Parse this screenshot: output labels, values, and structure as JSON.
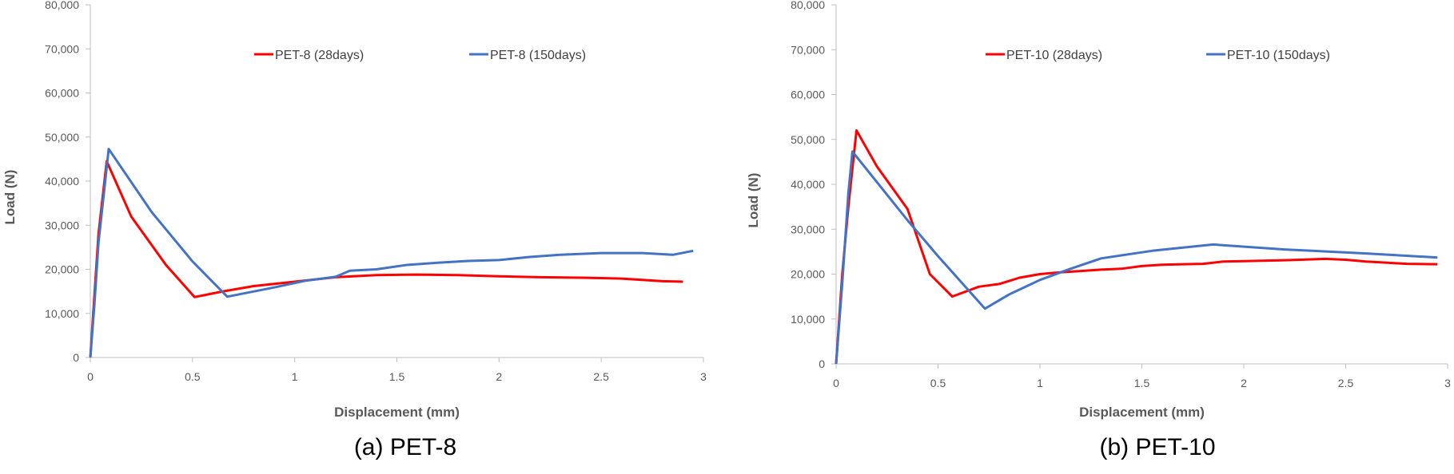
{
  "colors": {
    "red": "#ff0000",
    "blue": "#4472c4",
    "axis": "#bfbfbf",
    "text": "#595959"
  },
  "chart_data": [
    {
      "type": "line",
      "caption": "(a) PET-8",
      "xlabel": "Displacement (mm)",
      "ylabel": "Load (N)",
      "xlim": [
        0,
        3
      ],
      "ylim": [
        0,
        80000
      ],
      "x_ticks": [
        "0",
        "0.5",
        "1",
        "1.5",
        "2",
        "2.5",
        "3"
      ],
      "y_ticks": [
        "0",
        "10,000",
        "20,000",
        "30,000",
        "40,000",
        "50,000",
        "60,000",
        "70,000",
        "80,000"
      ],
      "grid": false,
      "legend_position": "top",
      "series": [
        {
          "name": "PET-8 (28days)",
          "color": "#ff0000",
          "points": [
            [
              0,
              0
            ],
            [
              0.02,
              14000
            ],
            [
              0.04,
              28000
            ],
            [
              0.08,
              44500
            ],
            [
              0.2,
              32000
            ],
            [
              0.37,
              21000
            ],
            [
              0.51,
              13700
            ],
            [
              0.65,
              15000
            ],
            [
              0.8,
              16200
            ],
            [
              1,
              17200
            ],
            [
              1.2,
              18200
            ],
            [
              1.4,
              18700
            ],
            [
              1.6,
              18800
            ],
            [
              1.8,
              18700
            ],
            [
              2,
              18400
            ],
            [
              2.2,
              18200
            ],
            [
              2.4,
              18100
            ],
            [
              2.6,
              17900
            ],
            [
              2.8,
              17300
            ],
            [
              2.9,
              17200
            ]
          ]
        },
        {
          "name": "PET-8 (150days)",
          "color": "#4472c4",
          "points": [
            [
              0,
              0
            ],
            [
              0.02,
              12000
            ],
            [
              0.04,
              26000
            ],
            [
              0.09,
              47300
            ],
            [
              0.3,
              33000
            ],
            [
              0.5,
              21800
            ],
            [
              0.67,
              13800
            ],
            [
              0.9,
              15900
            ],
            [
              1.05,
              17400
            ],
            [
              1.2,
              18300
            ],
            [
              1.27,
              19700
            ],
            [
              1.4,
              20000
            ],
            [
              1.55,
              21000
            ],
            [
              1.7,
              21500
            ],
            [
              1.85,
              21900
            ],
            [
              2,
              22100
            ],
            [
              2.15,
              22800
            ],
            [
              2.3,
              23300
            ],
            [
              2.5,
              23700
            ],
            [
              2.7,
              23700
            ],
            [
              2.85,
              23300
            ],
            [
              2.95,
              24200
            ]
          ]
        }
      ]
    },
    {
      "type": "line",
      "caption": "(b) PET-10",
      "xlabel": "Displacement (mm)",
      "ylabel": "Load (N)",
      "xlim": [
        0,
        3
      ],
      "ylim": [
        0,
        80000
      ],
      "x_ticks": [
        "0",
        "0.5",
        "1",
        "1.5",
        "2",
        "2.5",
        "3"
      ],
      "y_ticks": [
        "0",
        "10,000",
        "20,000",
        "30,000",
        "40,000",
        "50,000",
        "60,000",
        "70,000",
        "80,000"
      ],
      "grid": false,
      "legend_position": "top",
      "series": [
        {
          "name": "PET-10 (28days)",
          "color": "#ff0000",
          "points": [
            [
              0,
              0
            ],
            [
              0.03,
              20000
            ],
            [
              0.06,
              35000
            ],
            [
              0.1,
              52000
            ],
            [
              0.2,
              44000
            ],
            [
              0.35,
              34500
            ],
            [
              0.46,
              20000
            ],
            [
              0.57,
              15000
            ],
            [
              0.7,
              17200
            ],
            [
              0.8,
              17800
            ],
            [
              0.9,
              19200
            ],
            [
              1,
              20000
            ],
            [
              1.1,
              20400
            ],
            [
              1.2,
              20700
            ],
            [
              1.3,
              21000
            ],
            [
              1.4,
              21200
            ],
            [
              1.5,
              21800
            ],
            [
              1.6,
              22100
            ],
            [
              1.7,
              22200
            ],
            [
              1.8,
              22300
            ],
            [
              1.9,
              22800
            ],
            [
              2,
              22900
            ],
            [
              2.2,
              23100
            ],
            [
              2.4,
              23400
            ],
            [
              2.5,
              23200
            ],
            [
              2.6,
              22800
            ],
            [
              2.8,
              22300
            ],
            [
              2.95,
              22200
            ]
          ]
        },
        {
          "name": "PET-10 (150days)",
          "color": "#4472c4",
          "points": [
            [
              0,
              0
            ],
            [
              0.03,
              18000
            ],
            [
              0.06,
              38000
            ],
            [
              0.08,
              47300
            ],
            [
              0.35,
              32000
            ],
            [
              0.5,
              24000
            ],
            [
              0.73,
              12300
            ],
            [
              0.85,
              15500
            ],
            [
              1,
              18700
            ],
            [
              1.15,
              21200
            ],
            [
              1.3,
              23500
            ],
            [
              1.55,
              25200
            ],
            [
              1.85,
              26600
            ],
            [
              2.2,
              25500
            ],
            [
              2.6,
              24600
            ],
            [
              2.95,
              23700
            ]
          ]
        }
      ]
    }
  ]
}
